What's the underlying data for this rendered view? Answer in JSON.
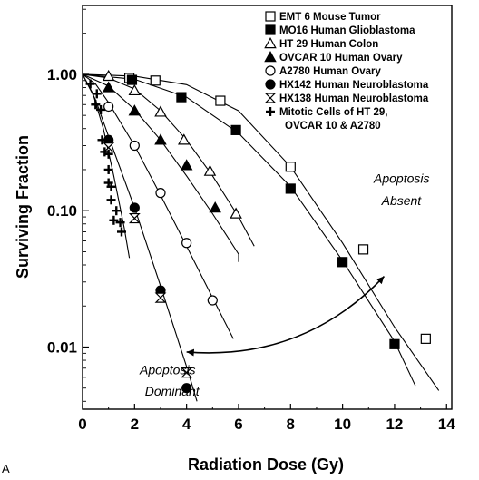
{
  "panel_label": "A",
  "chart_data": {
    "type": "scatter",
    "title": "",
    "xlabel": "Radiation Dose (Gy)",
    "ylabel": "Surviving Fraction",
    "xlim": [
      0,
      14.2
    ],
    "ylim": [
      0.0035,
      3.2
    ],
    "yscale": "log",
    "xticks": [
      0,
      2,
      4,
      6,
      8,
      10,
      12,
      14
    ],
    "xtick_labels": [
      "0",
      "2",
      "4",
      "6",
      "8",
      "10",
      "12",
      "14"
    ],
    "yticks": [
      1.0,
      0.1,
      0.01
    ],
    "ytick_labels": [
      "1.00",
      "0.10",
      "0.01"
    ],
    "grid": false,
    "legend_position": "top-right",
    "series": [
      {
        "name": "EMT 6 Mouse Tumor",
        "marker": "square-open",
        "points": [
          [
            1.8,
            0.94
          ],
          [
            2.8,
            0.9
          ],
          [
            5.3,
            0.64
          ],
          [
            8.0,
            0.21
          ],
          [
            10.8,
            0.052
          ],
          [
            13.2,
            0.0115
          ]
        ],
        "curve": [
          [
            0,
            1.0
          ],
          [
            2,
            0.97
          ],
          [
            4,
            0.84
          ],
          [
            6,
            0.54
          ],
          [
            8,
            0.21
          ],
          [
            10,
            0.058
          ],
          [
            12,
            0.014
          ],
          [
            13.7,
            0.0048
          ]
        ]
      },
      {
        "name": "MO16 Human Glioblastoma",
        "marker": "square-filled",
        "points": [
          [
            1.9,
            0.91
          ],
          [
            3.8,
            0.68
          ],
          [
            5.9,
            0.39
          ],
          [
            8.0,
            0.145
          ],
          [
            10.0,
            0.042
          ],
          [
            12.0,
            0.0105
          ]
        ],
        "curve": [
          [
            0,
            1.0
          ],
          [
            2,
            0.92
          ],
          [
            4,
            0.68
          ],
          [
            6,
            0.37
          ],
          [
            8,
            0.15
          ],
          [
            10,
            0.043
          ],
          [
            12,
            0.011
          ],
          [
            12.8,
            0.0052
          ]
        ]
      },
      {
        "name": "HT 29 Human Colon",
        "marker": "triangle-open",
        "points": [
          [
            1.0,
            0.97
          ],
          [
            2.0,
            0.76
          ],
          [
            3.0,
            0.53
          ],
          [
            3.9,
            0.33
          ],
          [
            4.9,
            0.195
          ],
          [
            5.9,
            0.095
          ]
        ],
        "curve": [
          [
            0,
            1.0
          ],
          [
            1,
            0.94
          ],
          [
            2,
            0.78
          ],
          [
            3,
            0.54
          ],
          [
            4,
            0.33
          ],
          [
            5,
            0.18
          ],
          [
            6,
            0.09
          ],
          [
            6.6,
            0.055
          ]
        ]
      },
      {
        "name": "OVCAR 10 Human Ovary",
        "marker": "triangle-filled",
        "points": [
          [
            1.0,
            0.8
          ],
          [
            2.0,
            0.54
          ],
          [
            3.0,
            0.33
          ],
          [
            4.0,
            0.215
          ],
          [
            5.1,
            0.105
          ]
        ],
        "curve": [
          [
            0,
            1.0
          ],
          [
            1,
            0.82
          ],
          [
            2,
            0.55
          ],
          [
            3,
            0.33
          ],
          [
            4,
            0.18
          ],
          [
            5,
            0.095
          ],
          [
            6,
            0.048
          ],
          [
            6.0,
            0.042
          ]
        ]
      },
      {
        "name": "A2780 Human Ovary",
        "marker": "circle-open",
        "points": [
          [
            1.0,
            0.58
          ],
          [
            2.0,
            0.3
          ],
          [
            3.0,
            0.135
          ],
          [
            4.0,
            0.058
          ],
          [
            5.0,
            0.022
          ]
        ],
        "curve": [
          [
            0,
            1.0
          ],
          [
            0.5,
            0.85
          ],
          [
            1,
            0.62
          ],
          [
            2,
            0.3
          ],
          [
            3,
            0.13
          ],
          [
            4,
            0.055
          ],
          [
            5,
            0.023
          ],
          [
            5.8,
            0.0115
          ]
        ]
      },
      {
        "name": "HX142 Human Neuroblastoma",
        "marker": "circle-filled",
        "points": [
          [
            1.0,
            0.33
          ],
          [
            2.0,
            0.105
          ],
          [
            3.0,
            0.026
          ],
          [
            4.0,
            0.005
          ]
        ],
        "curve": [
          [
            0,
            1.0
          ],
          [
            0.5,
            0.65
          ],
          [
            1,
            0.35
          ],
          [
            2,
            0.105
          ],
          [
            3,
            0.028
          ],
          [
            4,
            0.0072
          ],
          [
            4.4,
            0.004
          ]
        ]
      },
      {
        "name": "HX138 Human Neuroblastoma",
        "marker": "hourglass",
        "points": [
          [
            1.0,
            0.29
          ],
          [
            2.0,
            0.088
          ],
          [
            3.0,
            0.023
          ],
          [
            4.0,
            0.0065
          ]
        ],
        "curve": []
      },
      {
        "name": "Mitotic Cells of HT 29,\nOVCAR 10 & A2780",
        "marker": "plus",
        "points": [
          [
            0.3,
            0.85
          ],
          [
            0.5,
            0.6
          ],
          [
            0.55,
            0.72
          ],
          [
            0.7,
            0.55
          ],
          [
            0.75,
            0.33
          ],
          [
            0.85,
            0.27
          ],
          [
            1.0,
            0.26
          ],
          [
            1.0,
            0.2
          ],
          [
            1.0,
            0.16
          ],
          [
            1.1,
            0.15
          ],
          [
            1.1,
            0.12
          ],
          [
            1.2,
            0.085
          ],
          [
            1.3,
            0.1
          ],
          [
            1.45,
            0.082
          ],
          [
            1.5,
            0.07
          ]
        ],
        "curve": [
          [
            0,
            1.0
          ],
          [
            0.4,
            0.72
          ],
          [
            0.8,
            0.4
          ],
          [
            1.2,
            0.18
          ],
          [
            1.6,
            0.075
          ],
          [
            1.8,
            0.045
          ]
        ]
      }
    ],
    "annotations": [
      {
        "text": "Apoptosis",
        "at": [
          11.2,
          0.16
        ]
      },
      {
        "text": "Absent",
        "at": [
          11.5,
          0.11
        ]
      },
      {
        "text": "Apoptosis",
        "at": [
          2.2,
          0.0063
        ]
      },
      {
        "text": "Dominant",
        "at": [
          2.4,
          0.0044
        ]
      }
    ],
    "arrow": {
      "from": [
        11.6,
        0.033
      ],
      "to": [
        4.0,
        0.0092
      ]
    }
  }
}
